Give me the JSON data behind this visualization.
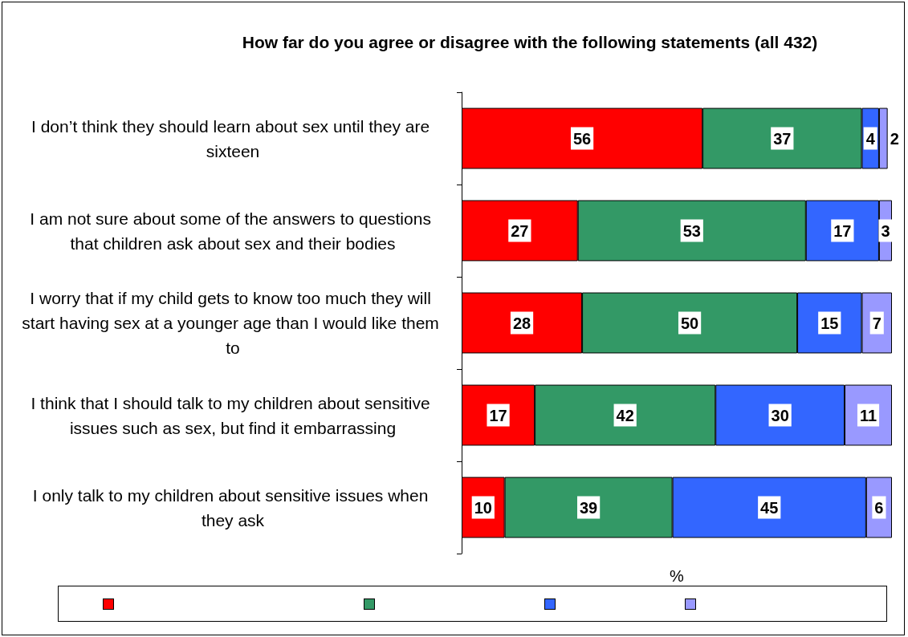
{
  "chart_data": {
    "type": "bar",
    "orientation": "horizontal",
    "stacked": true,
    "title": "How far do you agree or disagree with the following statements (all 432)",
    "xlabel": "%",
    "categories": [
      "I don’t think they should learn about sex until they are sixteen",
      "I am not sure about some of the answers to questions that children ask about sex and their bodies",
      "I worry that if my child gets to know too much they will start having sex at a younger age than I would like them to",
      "I think that I should talk to my children about sensitive issues such as sex, but find it embarrassing",
      "I only talk to my children about sensitive issues when they ask"
    ],
    "series": [
      {
        "color": "#ff0000",
        "values": [
          56,
          27,
          28,
          17,
          10
        ]
      },
      {
        "color": "#339966",
        "values": [
          37,
          53,
          50,
          42,
          39
        ]
      },
      {
        "color": "#3366ff",
        "values": [
          4,
          17,
          15,
          30,
          45
        ]
      },
      {
        "color": "#9999ff",
        "values": [
          2,
          3,
          7,
          11,
          6
        ]
      }
    ],
    "xlim": [
      0,
      100
    ],
    "data_labels": true,
    "grid": false
  }
}
